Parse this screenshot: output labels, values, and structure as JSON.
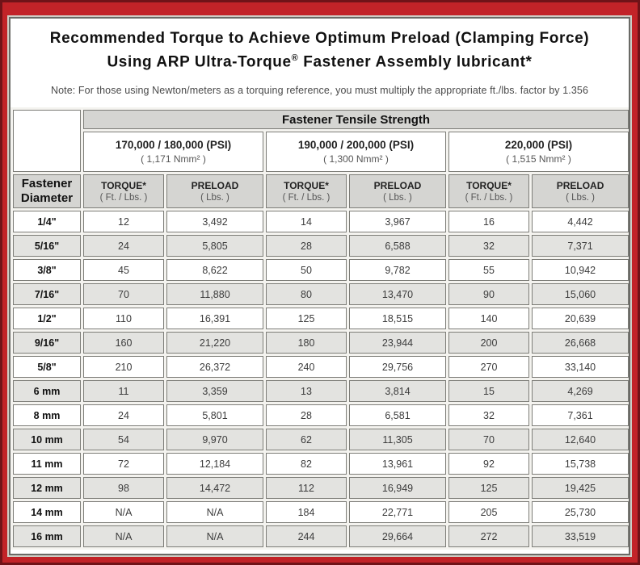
{
  "frame": {
    "outer_color": "#701318",
    "red_color": "#c22328"
  },
  "title": {
    "line1": "Recommended Torque to Achieve Optimum Preload (Clamping Force)",
    "line2_prefix": "Using ARP Ultra-Torque",
    "line2_reg": "®",
    "line2_suffix": " Fastener Assembly lubricant*",
    "note": "Note: For those using Newton/meters as a torquing reference, you must multiply the appropriate ft./lbs. factor by 1.356"
  },
  "table": {
    "tensile_header": "Fastener Tensile Strength",
    "diameter_header_line1": "Fastener",
    "diameter_header_line2": "Diameter",
    "strength_groups": [
      {
        "psi": "170,000 / 180,000 (PSI)",
        "nmm": "( 1,171 Nmm² )"
      },
      {
        "psi": "190,000 / 200,000 (PSI)",
        "nmm": "( 1,300 Nmm² )"
      },
      {
        "psi": "220,000 (PSI)",
        "nmm": "( 1,515 Nmm² )"
      }
    ],
    "col_headers": {
      "torque_label": "TORQUE*",
      "torque_unit": "( Ft. / Lbs. )",
      "preload_label": "PRELOAD",
      "preload_unit": "( Lbs. )"
    },
    "rows": [
      {
        "diameter": "1/4\"",
        "values": [
          "12",
          "3,492",
          "14",
          "3,967",
          "16",
          "4,442"
        ]
      },
      {
        "diameter": "5/16\"",
        "values": [
          "24",
          "5,805",
          "28",
          "6,588",
          "32",
          "7,371"
        ]
      },
      {
        "diameter": "3/8\"",
        "values": [
          "45",
          "8,622",
          "50",
          "9,782",
          "55",
          "10,942"
        ]
      },
      {
        "diameter": "7/16\"",
        "values": [
          "70",
          "11,880",
          "80",
          "13,470",
          "90",
          "15,060"
        ]
      },
      {
        "diameter": "1/2\"",
        "values": [
          "110",
          "16,391",
          "125",
          "18,515",
          "140",
          "20,639"
        ]
      },
      {
        "diameter": "9/16\"",
        "values": [
          "160",
          "21,220",
          "180",
          "23,944",
          "200",
          "26,668"
        ]
      },
      {
        "diameter": "5/8\"",
        "values": [
          "210",
          "26,372",
          "240",
          "29,756",
          "270",
          "33,140"
        ]
      },
      {
        "diameter": "6 mm",
        "values": [
          "11",
          "3,359",
          "13",
          "3,814",
          "15",
          "4,269"
        ]
      },
      {
        "diameter": "8 mm",
        "values": [
          "24",
          "5,801",
          "28",
          "6,581",
          "32",
          "7,361"
        ]
      },
      {
        "diameter": "10 mm",
        "values": [
          "54",
          "9,970",
          "62",
          "11,305",
          "70",
          "12,640"
        ]
      },
      {
        "diameter": "11 mm",
        "values": [
          "72",
          "12,184",
          "82",
          "13,961",
          "92",
          "15,738"
        ]
      },
      {
        "diameter": "12 mm",
        "values": [
          "98",
          "14,472",
          "112",
          "16,949",
          "125",
          "19,425"
        ]
      },
      {
        "diameter": "14 mm",
        "values": [
          "N/A",
          "N/A",
          "184",
          "22,771",
          "205",
          "25,730"
        ]
      },
      {
        "diameter": "16 mm",
        "values": [
          "N/A",
          "N/A",
          "244",
          "29,664",
          "272",
          "33,519"
        ]
      }
    ]
  }
}
